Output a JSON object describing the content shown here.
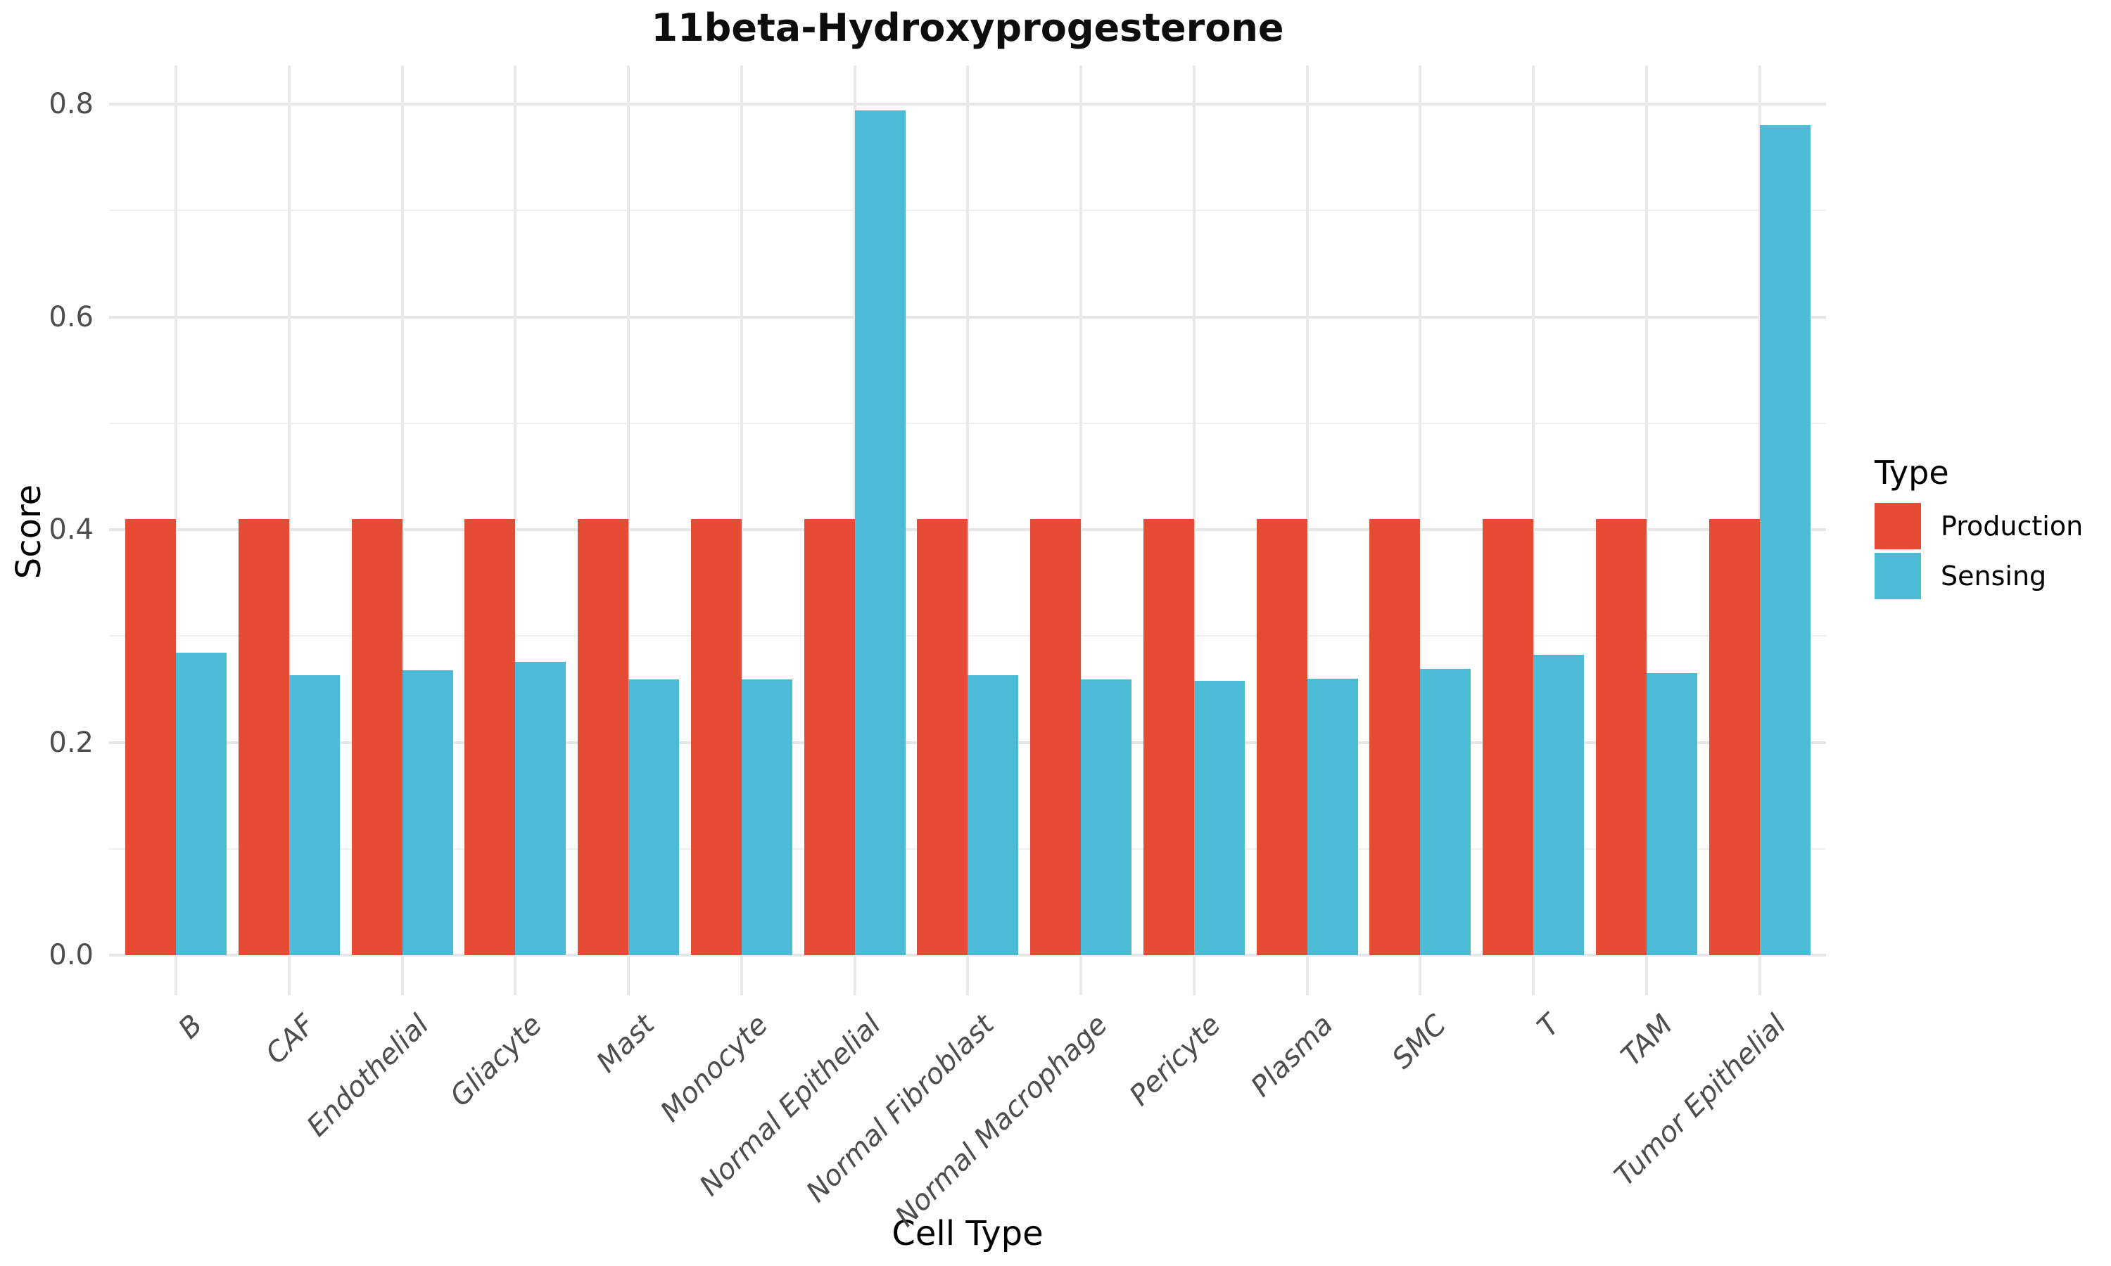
{
  "chart_data": {
    "type": "bar",
    "title": "11beta-Hydroxyprogesterone",
    "xlabel": "Cell Type",
    "ylabel": "Score",
    "categories": [
      "B",
      "CAF",
      "Endothelial",
      "Gliacyte",
      "Mast",
      "Monocyte",
      "Normal Epithelial",
      "Normal Fibroblast",
      "Normal Macrophage",
      "Pericyte",
      "Plasma",
      "SMC",
      "T",
      "TAM",
      "Tumor Epithelial"
    ],
    "series": [
      {
        "name": "Production",
        "color": "#E64B35",
        "values": [
          0.41,
          0.41,
          0.41,
          0.41,
          0.41,
          0.41,
          0.41,
          0.41,
          0.41,
          0.41,
          0.41,
          0.41,
          0.41,
          0.41,
          0.41
        ]
      },
      {
        "name": "Sensing",
        "color": "#4DBBD5",
        "values": [
          0.284,
          0.263,
          0.268,
          0.276,
          0.259,
          0.259,
          0.794,
          0.263,
          0.259,
          0.258,
          0.26,
          0.269,
          0.282,
          0.265,
          0.78
        ]
      }
    ],
    "ylim": [
      0,
      0.836
    ],
    "y_major_ticks": [
      0.0,
      0.2,
      0.4,
      0.6,
      0.8
    ],
    "y_minor_ticks": [
      0.1,
      0.3,
      0.5,
      0.7
    ],
    "grid": "major+minor, light gray on white",
    "bar_layout": "dodged pairs per category",
    "legend": {
      "title": "Type",
      "position": "right",
      "entries": [
        "Production",
        "Sensing"
      ]
    },
    "palette": {
      "production": "#E64B35",
      "sensing": "#4DBBD5",
      "grid_major": "#E6E6E6",
      "grid_minor": "#EFEFEF",
      "tick_text": "#4D4D4D",
      "title_text": "#0D0D0D",
      "background": "#FFFFFF"
    }
  }
}
